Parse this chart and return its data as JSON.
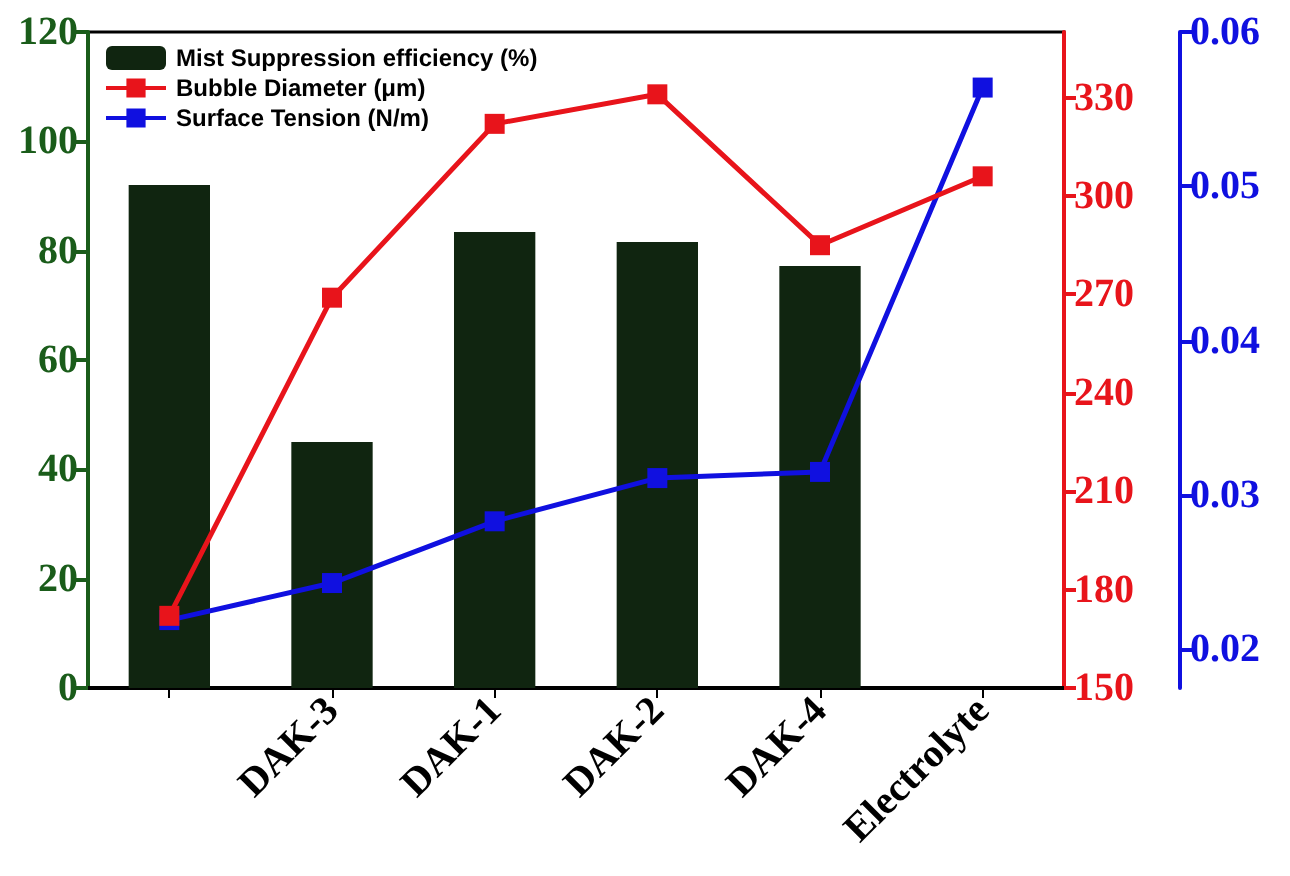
{
  "chart_data": {
    "type": "bar",
    "categories": [
      null,
      "DAK-3",
      "DAK-1",
      "DAK-2",
      "DAK-4",
      "Electrolyte"
    ],
    "series": [
      {
        "name": "Mist Suppression efficiency (%)",
        "color": "#102510",
        "values": [
          92,
          45,
          83.4,
          81.6,
          77.2,
          null
        ]
      },
      {
        "name": "Bubble Diameter (μm)",
        "type": "line",
        "axis": "y2",
        "color": "#e8141b",
        "values": [
          172,
          269,
          322,
          331,
          285,
          306
        ]
      },
      {
        "name": "Surface Tension (N/m)",
        "type": "line",
        "axis": "y3",
        "color": "#1010e0",
        "values": [
          0.0219,
          0.0243,
          0.0283,
          0.0311,
          0.0315,
          0.0564
        ]
      }
    ],
    "ylim": [
      0,
      120
    ],
    "yticks": [
      0,
      20,
      40,
      60,
      80,
      100,
      120
    ],
    "y2lim": [
      150,
      350
    ],
    "y2ticks": [
      150,
      180,
      210,
      240,
      270,
      300,
      330
    ],
    "y3lim": [
      0.0175,
      0.06
    ],
    "y3ticks": [
      0.02,
      0.03,
      0.04,
      0.05,
      0.06
    ],
    "marker": "square",
    "legend": "top left",
    "grid": false
  }
}
